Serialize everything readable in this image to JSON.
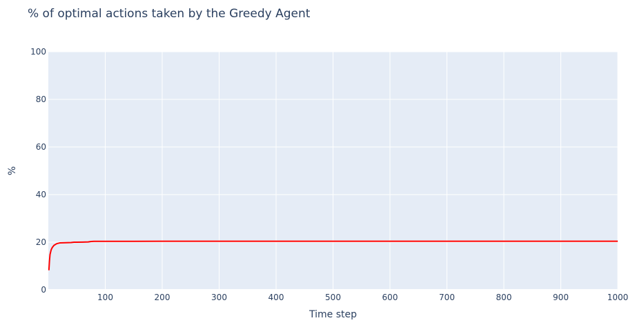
{
  "chart_data": {
    "type": "line",
    "title": "% of optimal actions taken by the Greedy Agent",
    "xlabel": "Time step",
    "ylabel": "%",
    "xlim": [
      0,
      1000
    ],
    "ylim": [
      0,
      100
    ],
    "x_ticks": [
      100,
      200,
      300,
      400,
      500,
      600,
      700,
      800,
      900,
      1000
    ],
    "y_ticks": [
      0,
      20,
      40,
      60,
      80,
      100
    ],
    "grid": true,
    "plot_background": "#e5ecf6",
    "series": [
      {
        "color": "#ff0000",
        "x": [
          1,
          2,
          3,
          5,
          7,
          10,
          15,
          20,
          30,
          40,
          45,
          50,
          60,
          70,
          75,
          80,
          100,
          150,
          200,
          300,
          400,
          500,
          600,
          700,
          800,
          900,
          1000
        ],
        "y": [
          8.2,
          12.0,
          14.8,
          16.8,
          17.8,
          18.7,
          19.4,
          19.7,
          19.8,
          19.85,
          20.0,
          20.0,
          20.05,
          20.1,
          20.3,
          20.35,
          20.35,
          20.35,
          20.4,
          20.4,
          20.4,
          20.4,
          20.4,
          20.4,
          20.4,
          20.4,
          20.4
        ]
      }
    ]
  }
}
